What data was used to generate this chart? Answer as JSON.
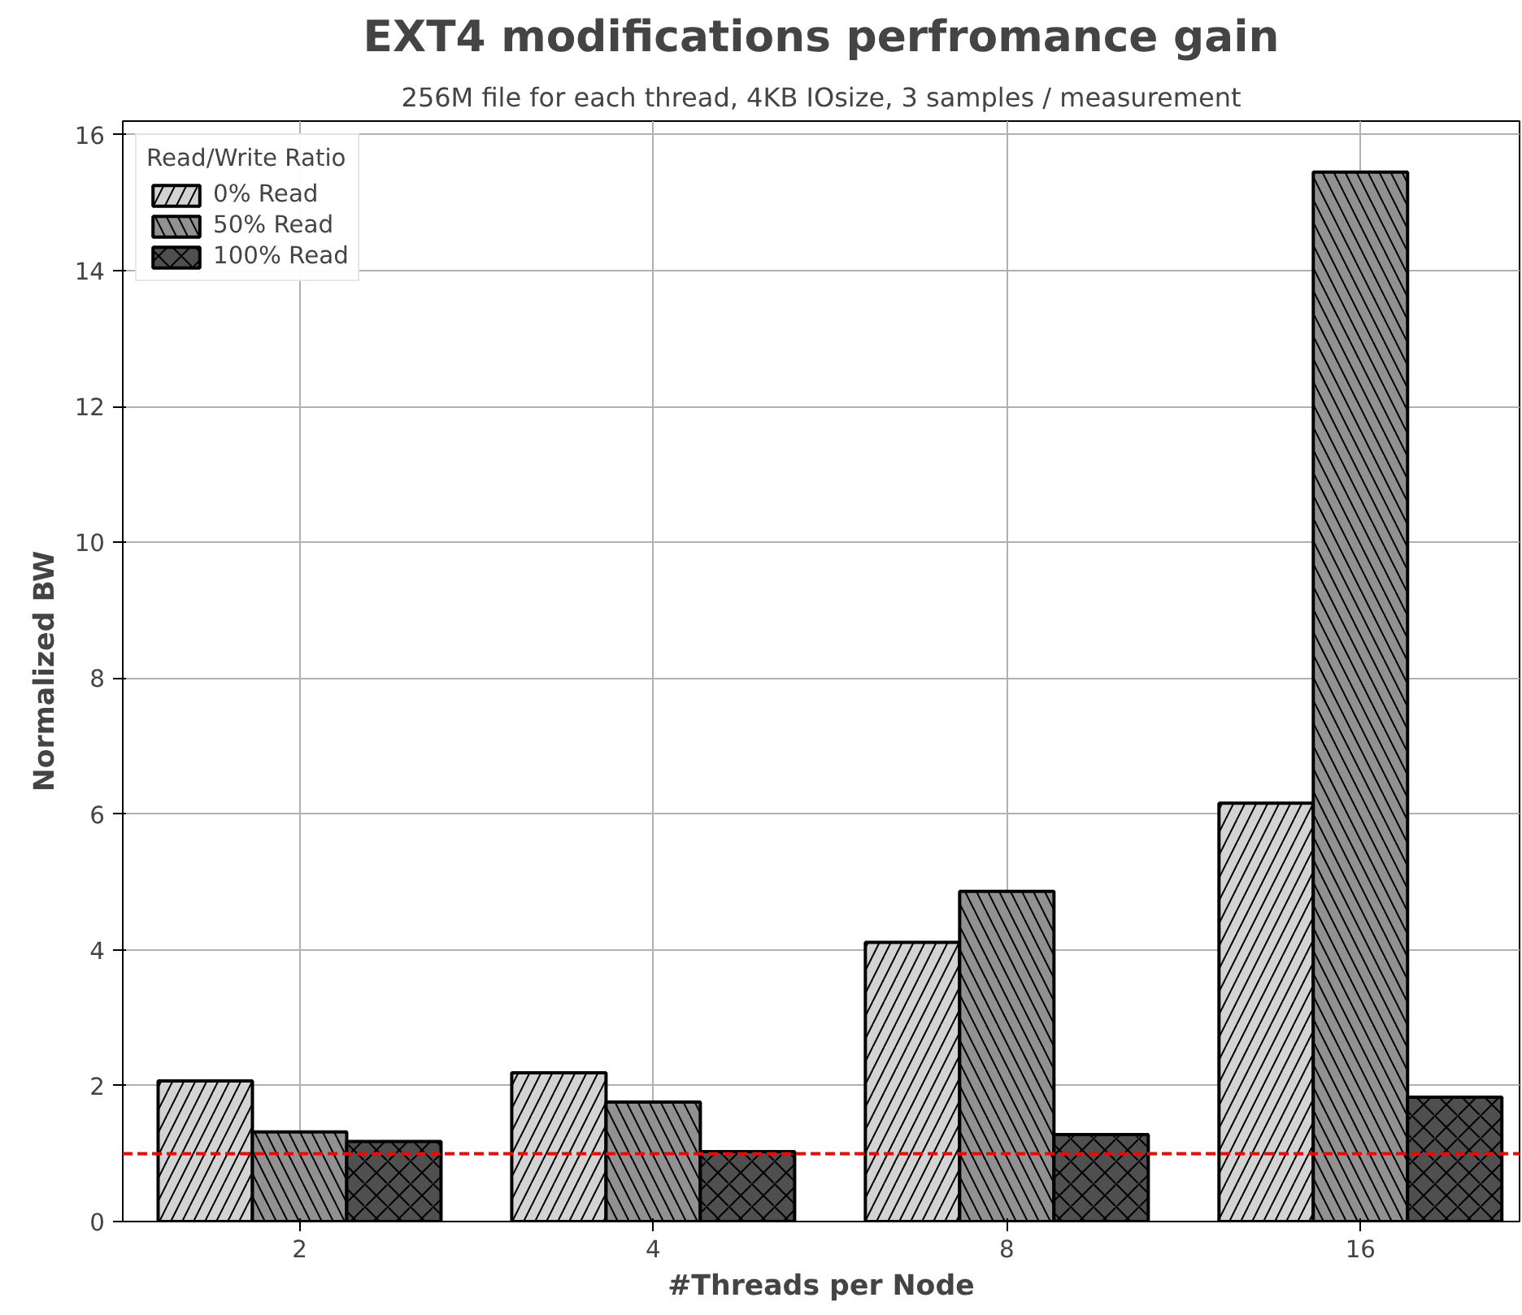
{
  "chart_data": {
    "type": "bar",
    "title": "EXT4 modifications perfromance gain",
    "subtitle": "256M file for each thread, 4KB IOsize, 3 samples / measurement",
    "xlabel": "#Threads per Node",
    "ylabel": "Normalized BW",
    "categories": [
      "2",
      "4",
      "8",
      "16"
    ],
    "series": [
      {
        "name": "0% Read",
        "color": "#d3d3d3",
        "values": [
          2.07,
          2.19,
          4.11,
          6.16
        ]
      },
      {
        "name": "50% Read",
        "color": "#919191",
        "values": [
          1.32,
          1.76,
          4.86,
          15.45
        ]
      },
      {
        "name": "100% Read",
        "color": "#4f4f4f",
        "values": [
          1.18,
          1.03,
          1.28,
          1.83
        ]
      }
    ],
    "legend_title": "Read/Write Ratio",
    "legend": "top left",
    "ylim": [
      0,
      16.2
    ],
    "yticks": [
      0,
      2,
      4,
      6,
      8,
      10,
      12,
      14,
      16
    ],
    "grid": true,
    "ref_lines": [
      {
        "axis": "y",
        "value": 1,
        "color": "#ff0000",
        "line_style": "dashed"
      }
    ]
  }
}
